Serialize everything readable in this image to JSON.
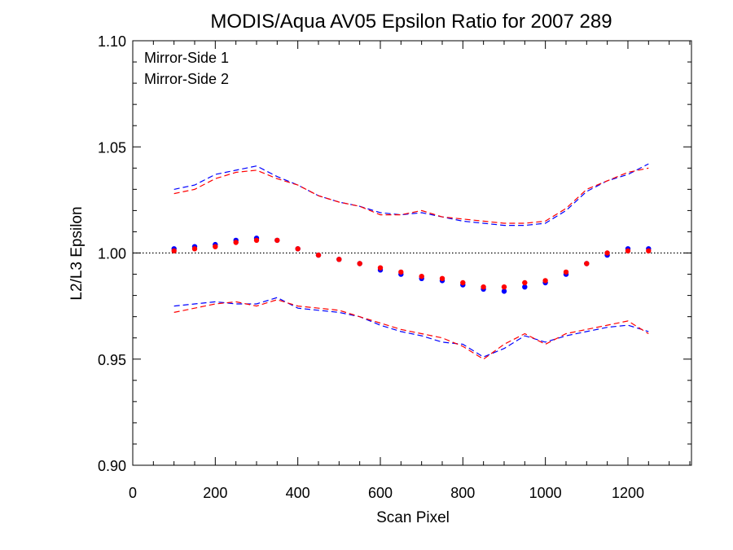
{
  "chart_data": {
    "type": "scatter",
    "title": "MODIS/Aqua AV05 Epsilon Ratio for 2007 289",
    "xlabel": "Scan Pixel",
    "ylabel": "L2/L3 Epsilon",
    "xlim": [
      0,
      1354
    ],
    "ylim": [
      0.9,
      1.1
    ],
    "x_ticks": [
      0,
      200,
      400,
      600,
      800,
      1000,
      1200
    ],
    "x_tick_labels": [
      "0",
      "200",
      "400",
      "600",
      "800",
      "1000",
      "1200"
    ],
    "y_ticks": [
      0.9,
      0.95,
      1.0,
      1.05,
      1.1
    ],
    "y_tick_labels": [
      "0.90",
      "0.95",
      "1.00",
      "1.05",
      "1.10"
    ],
    "reference_line": 1.0,
    "legend_position": "top-left",
    "series": [
      {
        "name": "Mirror-Side 1",
        "color": "#0000ff",
        "ratio": {
          "x": [
            100,
            150,
            200,
            250,
            300,
            350,
            400,
            450,
            500,
            550,
            600,
            650,
            700,
            750,
            800,
            850,
            900,
            950,
            1000,
            1050,
            1100,
            1150,
            1200,
            1250
          ],
          "y": [
            1.002,
            1.003,
            1.004,
            1.006,
            1.007,
            1.006,
            1.002,
            0.999,
            0.997,
            0.995,
            0.992,
            0.99,
            0.988,
            0.987,
            0.985,
            0.983,
            0.982,
            0.984,
            0.986,
            0.99,
            0.995,
            0.999,
            1.002,
            1.002
          ]
        },
        "upper": {
          "x": [
            100,
            150,
            200,
            250,
            300,
            350,
            400,
            450,
            500,
            550,
            600,
            650,
            700,
            750,
            800,
            850,
            900,
            950,
            1000,
            1050,
            1100,
            1150,
            1200,
            1250
          ],
          "y": [
            1.03,
            1.032,
            1.037,
            1.039,
            1.041,
            1.036,
            1.032,
            1.027,
            1.024,
            1.022,
            1.019,
            1.018,
            1.019,
            1.017,
            1.015,
            1.014,
            1.013,
            1.013,
            1.014,
            1.02,
            1.029,
            1.034,
            1.037,
            1.042
          ]
        },
        "lower": {
          "x": [
            100,
            150,
            200,
            250,
            300,
            350,
            400,
            450,
            500,
            550,
            600,
            650,
            700,
            750,
            800,
            850,
            900,
            950,
            1000,
            1050,
            1100,
            1150,
            1200,
            1250
          ],
          "y": [
            0.975,
            0.976,
            0.977,
            0.976,
            0.976,
            0.979,
            0.974,
            0.973,
            0.972,
            0.97,
            0.966,
            0.963,
            0.961,
            0.958,
            0.957,
            0.951,
            0.955,
            0.961,
            0.958,
            0.961,
            0.963,
            0.965,
            0.966,
            0.963
          ]
        }
      },
      {
        "name": "Mirror-Side 2",
        "color": "#ff0000",
        "ratio": {
          "x": [
            100,
            150,
            200,
            250,
            300,
            350,
            400,
            450,
            500,
            550,
            600,
            650,
            700,
            750,
            800,
            850,
            900,
            950,
            1000,
            1050,
            1100,
            1150,
            1200,
            1250
          ],
          "y": [
            1.001,
            1.002,
            1.003,
            1.005,
            1.006,
            1.006,
            1.002,
            0.999,
            0.997,
            0.995,
            0.993,
            0.991,
            0.989,
            0.988,
            0.986,
            0.984,
            0.984,
            0.986,
            0.987,
            0.991,
            0.995,
            1.0,
            1.001,
            1.001
          ]
        },
        "upper": {
          "x": [
            100,
            150,
            200,
            250,
            300,
            350,
            400,
            450,
            500,
            550,
            600,
            650,
            700,
            750,
            800,
            850,
            900,
            950,
            1000,
            1050,
            1100,
            1150,
            1200,
            1250
          ],
          "y": [
            1.028,
            1.03,
            1.035,
            1.038,
            1.039,
            1.035,
            1.032,
            1.027,
            1.024,
            1.022,
            1.018,
            1.018,
            1.02,
            1.017,
            1.016,
            1.015,
            1.014,
            1.014,
            1.015,
            1.021,
            1.03,
            1.034,
            1.038,
            1.04
          ]
        },
        "lower": {
          "x": [
            100,
            150,
            200,
            250,
            300,
            350,
            400,
            450,
            500,
            550,
            600,
            650,
            700,
            750,
            800,
            850,
            900,
            950,
            1000,
            1050,
            1100,
            1150,
            1200,
            1250
          ],
          "y": [
            0.972,
            0.974,
            0.976,
            0.977,
            0.975,
            0.978,
            0.975,
            0.974,
            0.973,
            0.97,
            0.967,
            0.964,
            0.962,
            0.96,
            0.956,
            0.95,
            0.957,
            0.962,
            0.957,
            0.962,
            0.964,
            0.966,
            0.968,
            0.962
          ]
        }
      }
    ]
  }
}
